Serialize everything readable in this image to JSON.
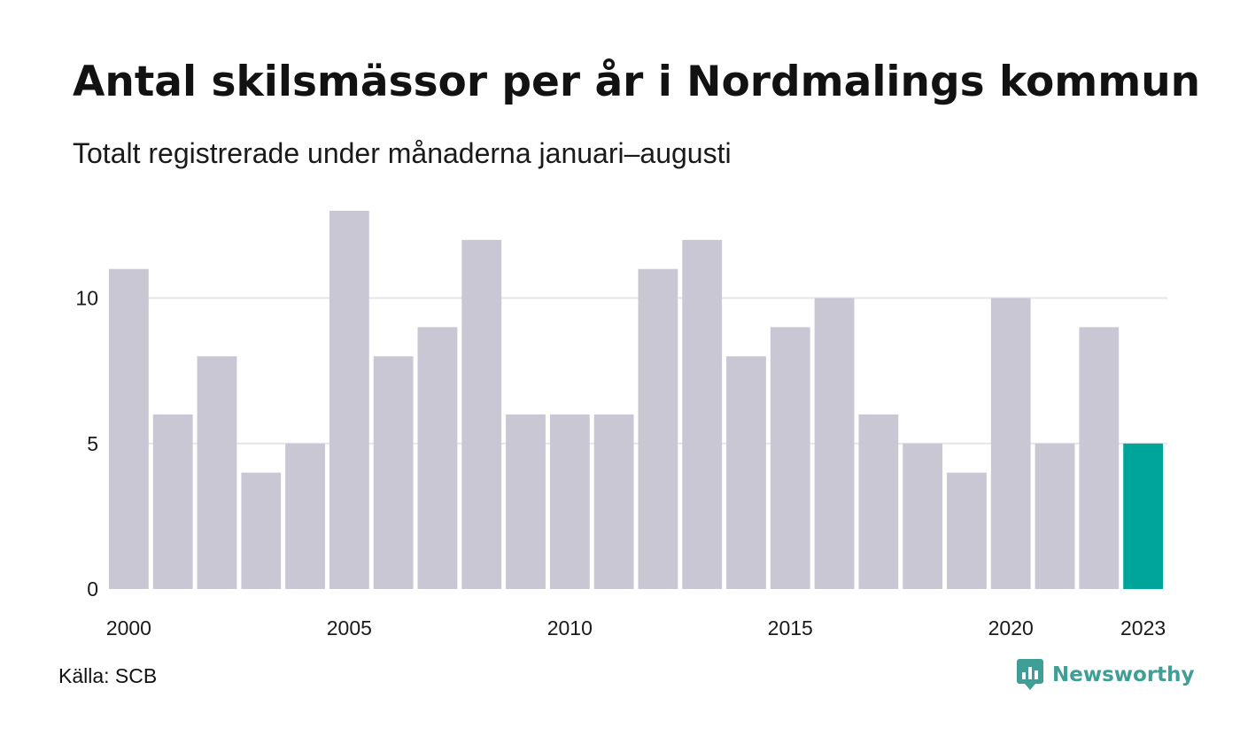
{
  "title": "Antal skilsmässor per år i Nordmalings kommun",
  "subtitle": "Totalt registrerade under månaderna januari–augusti",
  "source": "Källa: SCB",
  "brand": {
    "name": "Newsworthy",
    "icon": "newsworthy-logo-icon",
    "color": "#3f9e95"
  },
  "colors": {
    "bar": "#c8c7d3",
    "highlight": "#00a599",
    "grid": "#e6e6ea",
    "axis_text": "#1a1a1a"
  },
  "chart_data": {
    "type": "bar",
    "x": [
      2000,
      2001,
      2002,
      2003,
      2004,
      2005,
      2006,
      2007,
      2008,
      2009,
      2010,
      2011,
      2012,
      2013,
      2014,
      2015,
      2016,
      2017,
      2018,
      2019,
      2020,
      2021,
      2022,
      2023
    ],
    "values": [
      11,
      6,
      8,
      4,
      5,
      13,
      8,
      9,
      12,
      6,
      6,
      6,
      11,
      12,
      8,
      9,
      10,
      6,
      5,
      4,
      10,
      5,
      9,
      5
    ],
    "highlight": 2023,
    "ylim": [
      0,
      13
    ],
    "yticks": [
      0,
      5,
      10
    ],
    "xtick_labels": [
      "2000",
      "2005",
      "2010",
      "2015",
      "2020",
      "2023"
    ],
    "grid": true,
    "legend": "none",
    "xlabel": "",
    "ylabel": ""
  }
}
